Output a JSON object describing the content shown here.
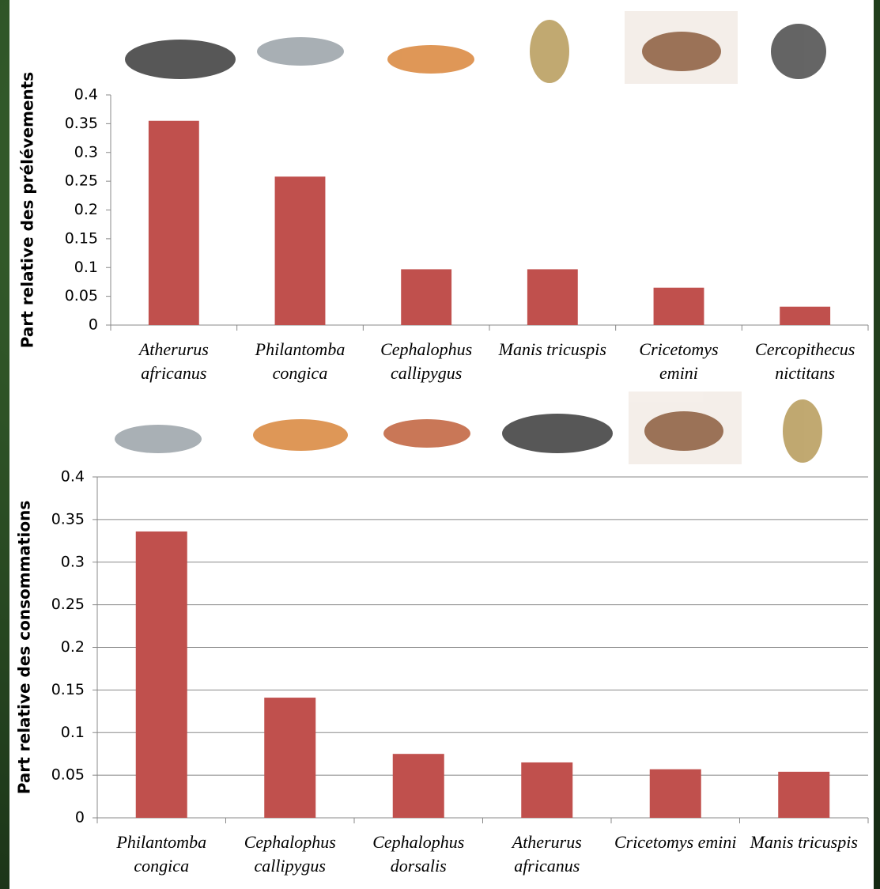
{
  "chart_data": [
    {
      "type": "bar",
      "y_label": "Part relative des prélévements",
      "categories": [
        "Atherurus africanus",
        "Philantomba congica",
        "Cephalophus callipygus",
        "Manis tricuspis",
        "Cricetomys emini",
        "Cercopithecus nictitans"
      ],
      "values": [
        0.355,
        0.258,
        0.097,
        0.097,
        0.065,
        0.032
      ],
      "color": "#c0504d",
      "ylim": [
        0,
        0.4
      ],
      "yticks": [
        0,
        0.05,
        0.1,
        0.15,
        0.2,
        0.25,
        0.3,
        0.35,
        0.4
      ],
      "grid": false
    },
    {
      "type": "bar",
      "y_label": "Part relative des consommations",
      "categories": [
        "Philantomba congica",
        "Cephalophus callipygus",
        "Cephalophus dorsalis",
        "Atherurus africanus",
        "Cricetomys emini",
        "Manis tricuspis"
      ],
      "values": [
        0.336,
        0.141,
        0.075,
        0.065,
        0.057,
        0.054
      ],
      "color": "#c0504d",
      "ylim": [
        0,
        0.4
      ],
      "yticks": [
        0,
        0.05,
        0.1,
        0.15,
        0.2,
        0.25,
        0.3,
        0.35,
        0.4
      ],
      "grid": true
    }
  ]
}
